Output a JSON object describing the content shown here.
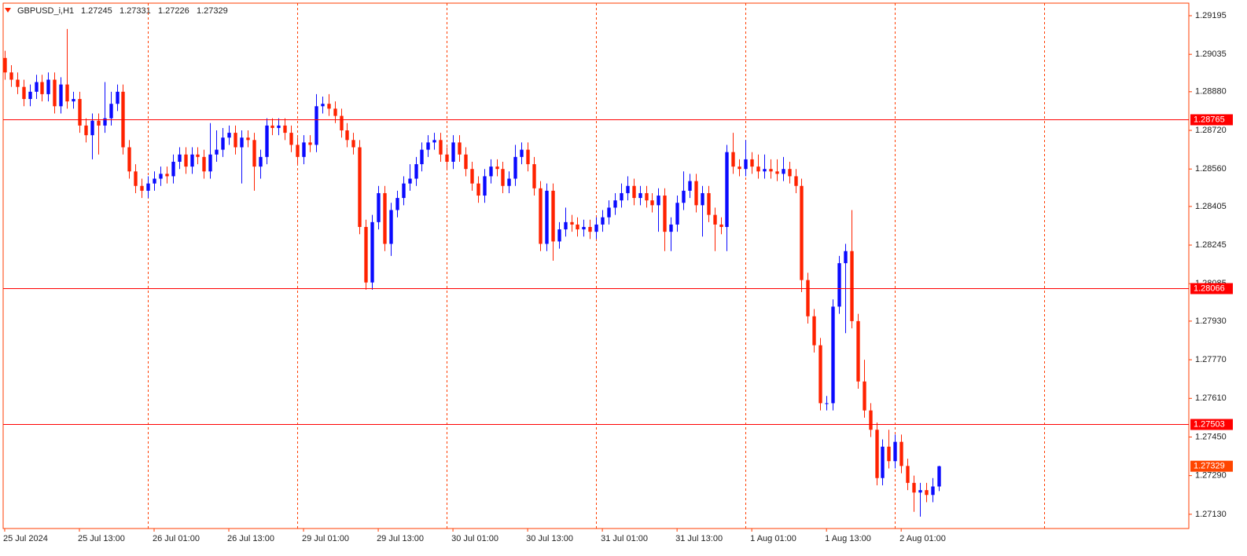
{
  "chart_data": {
    "type": "candlestick",
    "title": "GBPUSD_i,H1",
    "up_color": "#0a0aff",
    "down_color": "#ff2200",
    "axis_color": "#ff3c00",
    "open": [
      1.2902,
      1.2896,
      1.2893,
      1.289,
      1.2885,
      1.2888,
      1.2892,
      1.2887,
      1.2893,
      1.2882,
      1.2891,
      1.2884,
      1.2885,
      1.2874,
      1.287,
      1.2876,
      1.2874,
      1.2877,
      1.2883,
      1.2888,
      1.2865,
      1.2855,
      1.2849,
      1.2847,
      1.285,
      1.2852,
      1.2854,
      1.2853,
      1.2859,
      1.2862,
      1.2857,
      1.2862,
      1.2861,
      1.2855,
      1.2862,
      1.2864,
      1.2869,
      1.2871,
      1.2865,
      1.2869,
      1.2868,
      1.2857,
      1.2861,
      1.2874,
      1.2873,
      1.2874,
      1.2871,
      1.2866,
      1.2861,
      1.2867,
      1.2866,
      1.2882,
      1.2883,
      1.2881,
      1.2878,
      1.2872,
      1.2868,
      1.2865,
      1.2832,
      1.2809,
      1.2834,
      1.2846,
      1.2825,
      1.2839,
      1.2844,
      1.285,
      1.2852,
      1.2858,
      1.2864,
      1.2867,
      1.2868,
      1.2862,
      1.2859,
      1.2867,
      1.2862,
      1.2856,
      1.285,
      1.2845,
      1.2853,
      1.2857,
      1.2856,
      1.2849,
      1.2852,
      1.2861,
      1.2864,
      1.2858,
      1.2848,
      1.2825,
      1.2847,
      1.2826,
      1.2831,
      1.2834,
      1.2833,
      1.2831,
      1.2832,
      1.283,
      1.2833,
      1.2836,
      1.284,
      1.2843,
      1.2846,
      1.2849,
      1.2844,
      1.2846,
      1.2843,
      1.2841,
      1.2845,
      1.283,
      1.2833,
      1.2842,
      1.2847,
      1.2851,
      1.2841,
      1.2846,
      1.2837,
      1.2833,
      1.2832,
      1.2863,
      1.2857,
      1.2856,
      1.286,
      1.2857,
      1.2855,
      1.2856,
      1.2855,
      1.2854,
      1.2856,
      1.2853,
      1.2849,
      1.281,
      1.2795,
      1.2783,
      1.2759,
      1.2759,
      1.2799,
      1.2817,
      1.2822,
      1.2793,
      1.2768,
      1.2756,
      1.2748,
      1.2728,
      1.2741,
      1.2735,
      1.2743,
      1.2733,
      1.2726,
      1.2722,
      1.2723,
      1.2721,
      1.27245
    ],
    "high": [
      1.2905,
      1.2899,
      1.2896,
      1.2893,
      1.2891,
      1.2895,
      1.2895,
      1.2896,
      1.2896,
      1.2894,
      1.2914,
      1.2888,
      1.2888,
      1.2877,
      1.2879,
      1.2879,
      1.2892,
      1.2888,
      1.2891,
      1.2891,
      1.2868,
      1.2858,
      1.2852,
      1.2853,
      1.2855,
      1.2857,
      1.2857,
      1.2862,
      1.2865,
      1.2865,
      1.2865,
      1.2865,
      1.2864,
      1.2875,
      1.2872,
      1.2873,
      1.2874,
      1.2874,
      1.2872,
      1.2872,
      1.2871,
      1.2864,
      1.2877,
      1.2877,
      1.2877,
      1.2877,
      1.2874,
      1.2869,
      1.287,
      1.287,
      1.2887,
      1.2886,
      1.2887,
      1.2884,
      1.2881,
      1.2875,
      1.2871,
      1.2868,
      1.2835,
      1.2837,
      1.2849,
      1.2849,
      1.2842,
      1.2847,
      1.2853,
      1.2858,
      1.2861,
      1.2867,
      1.287,
      1.2871,
      1.2871,
      1.2865,
      1.287,
      1.287,
      1.2865,
      1.2859,
      1.2853,
      1.2856,
      1.286,
      1.286,
      1.2859,
      1.2855,
      1.2866,
      1.2867,
      1.2867,
      1.2861,
      1.2851,
      1.285,
      1.285,
      1.2834,
      1.284,
      1.2837,
      1.2836,
      1.2835,
      1.2835,
      1.2836,
      1.2839,
      1.2843,
      1.2846,
      1.285,
      1.2853,
      1.2852,
      1.2849,
      1.2849,
      1.2846,
      1.2848,
      1.2848,
      1.2836,
      1.2845,
      1.2855,
      1.2854,
      1.2854,
      1.2849,
      1.2849,
      1.284,
      1.2836,
      1.2866,
      1.2871,
      1.286,
      1.2868,
      1.2863,
      1.2862,
      1.2862,
      1.286,
      1.286,
      1.2861,
      1.2859,
      1.2856,
      1.2852,
      1.2813,
      1.2798,
      1.2786,
      1.2762,
      1.2802,
      1.282,
      1.2825,
      1.2839,
      1.2796,
      1.2777,
      1.2759,
      1.2751,
      1.2744,
      1.2748,
      1.2746,
      1.2746,
      1.2736,
      1.2729,
      1.2726,
      1.2726,
      1.2728,
      1.27331
    ],
    "low": [
      1.2893,
      1.289,
      1.2887,
      1.2882,
      1.2882,
      1.2885,
      1.2884,
      1.2884,
      1.2879,
      1.2879,
      1.2881,
      1.2881,
      1.2871,
      1.2867,
      1.286,
      1.2862,
      1.2871,
      1.2874,
      1.288,
      1.2862,
      1.2852,
      1.2846,
      1.2844,
      1.2844,
      1.2847,
      1.2849,
      1.285,
      1.285,
      1.2856,
      1.2854,
      1.2854,
      1.2858,
      1.2852,
      1.2852,
      1.2859,
      1.2861,
      1.2866,
      1.2862,
      1.285,
      1.2865,
      1.2847,
      1.2852,
      1.2858,
      1.287,
      1.287,
      1.2868,
      1.2863,
      1.2858,
      1.2858,
      1.2863,
      1.2863,
      1.2879,
      1.2878,
      1.2875,
      1.2869,
      1.2865,
      1.2862,
      1.2829,
      1.2806,
      1.2806,
      1.2831,
      1.2822,
      1.282,
      1.2836,
      1.2841,
      1.2847,
      1.2849,
      1.2855,
      1.2861,
      1.2864,
      1.2859,
      1.2856,
      1.2856,
      1.2859,
      1.2853,
      1.2847,
      1.2842,
      1.2842,
      1.285,
      1.2853,
      1.2846,
      1.2846,
      1.2849,
      1.2858,
      1.2855,
      1.2845,
      1.2822,
      1.2822,
      1.2818,
      1.2823,
      1.2828,
      1.283,
      1.2828,
      1.2828,
      1.2827,
      1.2827,
      1.283,
      1.2833,
      1.2837,
      1.284,
      1.2843,
      1.2841,
      1.2841,
      1.284,
      1.2838,
      1.283,
      1.2822,
      1.2822,
      1.283,
      1.2839,
      1.2844,
      1.2838,
      1.2828,
      1.2834,
      1.2822,
      1.2829,
      1.2822,
      1.2854,
      1.2853,
      1.2853,
      1.2854,
      1.2852,
      1.2852,
      1.2852,
      1.2851,
      1.2851,
      1.285,
      1.2846,
      1.2805,
      1.2792,
      1.278,
      1.2756,
      1.2756,
      1.2756,
      1.2796,
      1.2788,
      1.279,
      1.2765,
      1.2753,
      1.2745,
      1.2725,
      1.2725,
      1.2732,
      1.2732,
      1.273,
      1.2723,
      1.2714,
      1.2712,
      1.2718,
      1.2718,
      1.27226
    ],
    "close": [
      1.2896,
      1.2893,
      1.289,
      1.2885,
      1.2888,
      1.2892,
      1.2887,
      1.2893,
      1.2882,
      1.2891,
      1.2884,
      1.2885,
      1.2874,
      1.287,
      1.2876,
      1.2874,
      1.2877,
      1.2883,
      1.2888,
      1.2865,
      1.2855,
      1.2849,
      1.2847,
      1.285,
      1.2852,
      1.2854,
      1.2853,
      1.2859,
      1.2862,
      1.2857,
      1.2862,
      1.2861,
      1.2855,
      1.2862,
      1.2864,
      1.2869,
      1.2871,
      1.2865,
      1.2869,
      1.2868,
      1.2857,
      1.2861,
      1.2874,
      1.2873,
      1.2874,
      1.2871,
      1.2866,
      1.2861,
      1.2867,
      1.2866,
      1.2882,
      1.2883,
      1.2881,
      1.2878,
      1.2872,
      1.2868,
      1.2865,
      1.2832,
      1.2809,
      1.2834,
      1.2846,
      1.2825,
      1.2839,
      1.2844,
      1.285,
      1.2852,
      1.2858,
      1.2864,
      1.2867,
      1.2868,
      1.2862,
      1.2859,
      1.2867,
      1.2862,
      1.2856,
      1.285,
      1.2845,
      1.2853,
      1.2857,
      1.2856,
      1.2849,
      1.2852,
      1.2861,
      1.2864,
      1.2858,
      1.2848,
      1.2825,
      1.2847,
      1.2826,
      1.2831,
      1.2834,
      1.2833,
      1.2831,
      1.2832,
      1.283,
      1.2833,
      1.2836,
      1.284,
      1.2843,
      1.2846,
      1.2849,
      1.2844,
      1.2846,
      1.2843,
      1.2841,
      1.2845,
      1.283,
      1.2833,
      1.2842,
      1.2847,
      1.2851,
      1.2841,
      1.2846,
      1.2837,
      1.2833,
      1.2832,
      1.2863,
      1.2857,
      1.2856,
      1.286,
      1.2857,
      1.2855,
      1.2856,
      1.2855,
      1.2854,
      1.2856,
      1.2853,
      1.2849,
      1.281,
      1.2795,
      1.2783,
      1.2759,
      1.2759,
      1.2799,
      1.2817,
      1.2822,
      1.2793,
      1.2768,
      1.2756,
      1.2748,
      1.2728,
      1.2741,
      1.2735,
      1.2743,
      1.2733,
      1.2726,
      1.2722,
      1.2723,
      1.2721,
      1.27245,
      1.27329
    ],
    "xlim": [
      -0.25,
      190.2
    ],
    "xticks": [
      {
        "value": 0,
        "label": "25 Jul 2024"
      },
      {
        "value": 12,
        "label": "25 Jul 13:00"
      },
      {
        "value": 24,
        "label": "26 Jul 01:00"
      },
      {
        "value": 36,
        "label": "26 Jul 13:00"
      },
      {
        "value": 48,
        "label": "29 Jul 01:00"
      },
      {
        "value": 60,
        "label": "29 Jul 13:00"
      },
      {
        "value": 72,
        "label": "30 Jul 01:00"
      },
      {
        "value": 84,
        "label": "30 Jul 13:00"
      },
      {
        "value": 96,
        "label": "31 Jul 01:00"
      },
      {
        "value": 108,
        "label": "31 Jul 13:00"
      },
      {
        "value": 120,
        "label": "1 Aug 01:00"
      },
      {
        "value": 132,
        "label": "1 Aug 13:00"
      },
      {
        "value": 144,
        "label": "2 Aug 01:00"
      }
    ],
    "separators": [
      23,
      47,
      71,
      95,
      119,
      143,
      167
    ],
    "ylim": [
      1.27071,
      1.29247
    ],
    "yticks": [
      1.29195,
      1.29035,
      {
        "value": 1.2888,
        "label": "1.28880"
      },
      {
        "value": 1.2872,
        "label": "1.28720"
      },
      {
        "value": 1.2856,
        "label": "1.28560"
      },
      1.28405,
      1.28245,
      1.28085,
      {
        "value": 1.2793,
        "label": "1.27930"
      },
      {
        "value": 1.2777,
        "label": "1.27770"
      },
      {
        "value": 1.2761,
        "label": "1.27610"
      },
      {
        "value": 1.2745,
        "label": "1.27450"
      },
      {
        "value": 1.2729,
        "label": "1.27290"
      },
      {
        "value": 1.2713,
        "label": "1.27130"
      }
    ],
    "levels": [
      1.28765,
      1.28066,
      1.27503
    ],
    "level_color": "#ff0000",
    "price_color": "#ff4500"
  }
}
